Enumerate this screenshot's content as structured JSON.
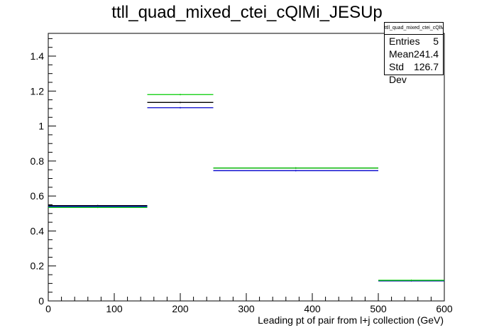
{
  "chart_data": {
    "type": "step",
    "title": "ttll_quad_mixed_ctei_cQlMi_JESUp",
    "xlabel": "Leading pt of pair from l+j collection (GeV)",
    "ylabel": "",
    "xlim": [
      0,
      600
    ],
    "ylim": [
      0,
      1.53
    ],
    "xticks": [
      0,
      100,
      200,
      300,
      400,
      500,
      600
    ],
    "yticks": [
      0,
      0.2,
      0.4,
      0.6,
      0.8,
      1,
      1.2,
      1.4
    ],
    "bin_edges": [
      0,
      150,
      250,
      500,
      600
    ],
    "series": [
      {
        "color": "#000000",
        "values": [
          0.545,
          1.135,
          0.76,
          0.115
        ]
      },
      {
        "color": "#0000cc",
        "values": [
          0.54,
          1.105,
          0.745,
          0.115
        ]
      },
      {
        "color": "#00cc00",
        "values": [
          0.535,
          1.18,
          0.76,
          0.118
        ]
      }
    ],
    "stats": {
      "name": "ttll_quad_mixed_ctei_cQlMi_JESUp",
      "entries_label": "Entries",
      "entries": "5",
      "mean_label": "Mean",
      "mean": "241.4",
      "std_label": "Std Dev",
      "std": "126.7"
    }
  }
}
